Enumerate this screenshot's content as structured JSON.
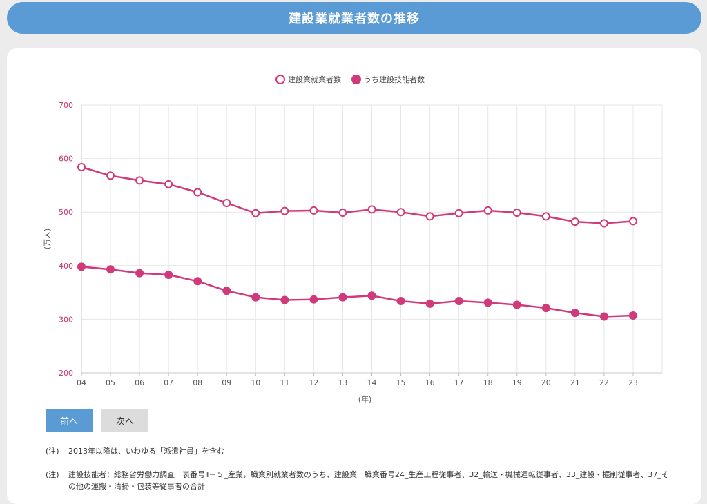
{
  "header": {
    "title": "建設業就業者数の推移"
  },
  "chart_data": {
    "type": "line",
    "categories": [
      "04",
      "05",
      "06",
      "07",
      "08",
      "09",
      "10",
      "11",
      "12",
      "13",
      "14",
      "15",
      "16",
      "17",
      "18",
      "19",
      "20",
      "21",
      "22",
      "23"
    ],
    "series": [
      {
        "name": "建設業就業者数",
        "style": "hollow",
        "color": "#d13a7a",
        "values": [
          584,
          568,
          559,
          552,
          537,
          517,
          498,
          502,
          503,
          499,
          505,
          500,
          492,
          498,
          503,
          499,
          492,
          482,
          479,
          483
        ]
      },
      {
        "name": "うち建設技能者数",
        "style": "filled",
        "color": "#d13a7a",
        "values": [
          398,
          393,
          386,
          383,
          371,
          353,
          341,
          336,
          337,
          341,
          344,
          334,
          329,
          334,
          331,
          327,
          321,
          312,
          305,
          307
        ]
      }
    ],
    "ylim": [
      200,
      700
    ],
    "yticks": [
      "200",
      "300",
      "400",
      "500",
      "600",
      "700"
    ],
    "ylabel": "(万人)",
    "xlabel": "(年)",
    "grid": true,
    "legend_position": "top-center"
  },
  "buttons": {
    "prev": "前へ",
    "next": "次へ"
  },
  "notes": {
    "tag": "(注)",
    "note1": "2013年以降は、いわゆる「派遣社員」を含む",
    "note2": "建設技能者：総務省労働力調査　表番号Ⅱ－５_産業，職業別就業者数のうち、建設業　職業番号24_生産工程従事者、32_輸送・機械運転従事者、33_建設・掘削従事者、37_その他の運搬・清掃・包装等従事者の合計"
  }
}
